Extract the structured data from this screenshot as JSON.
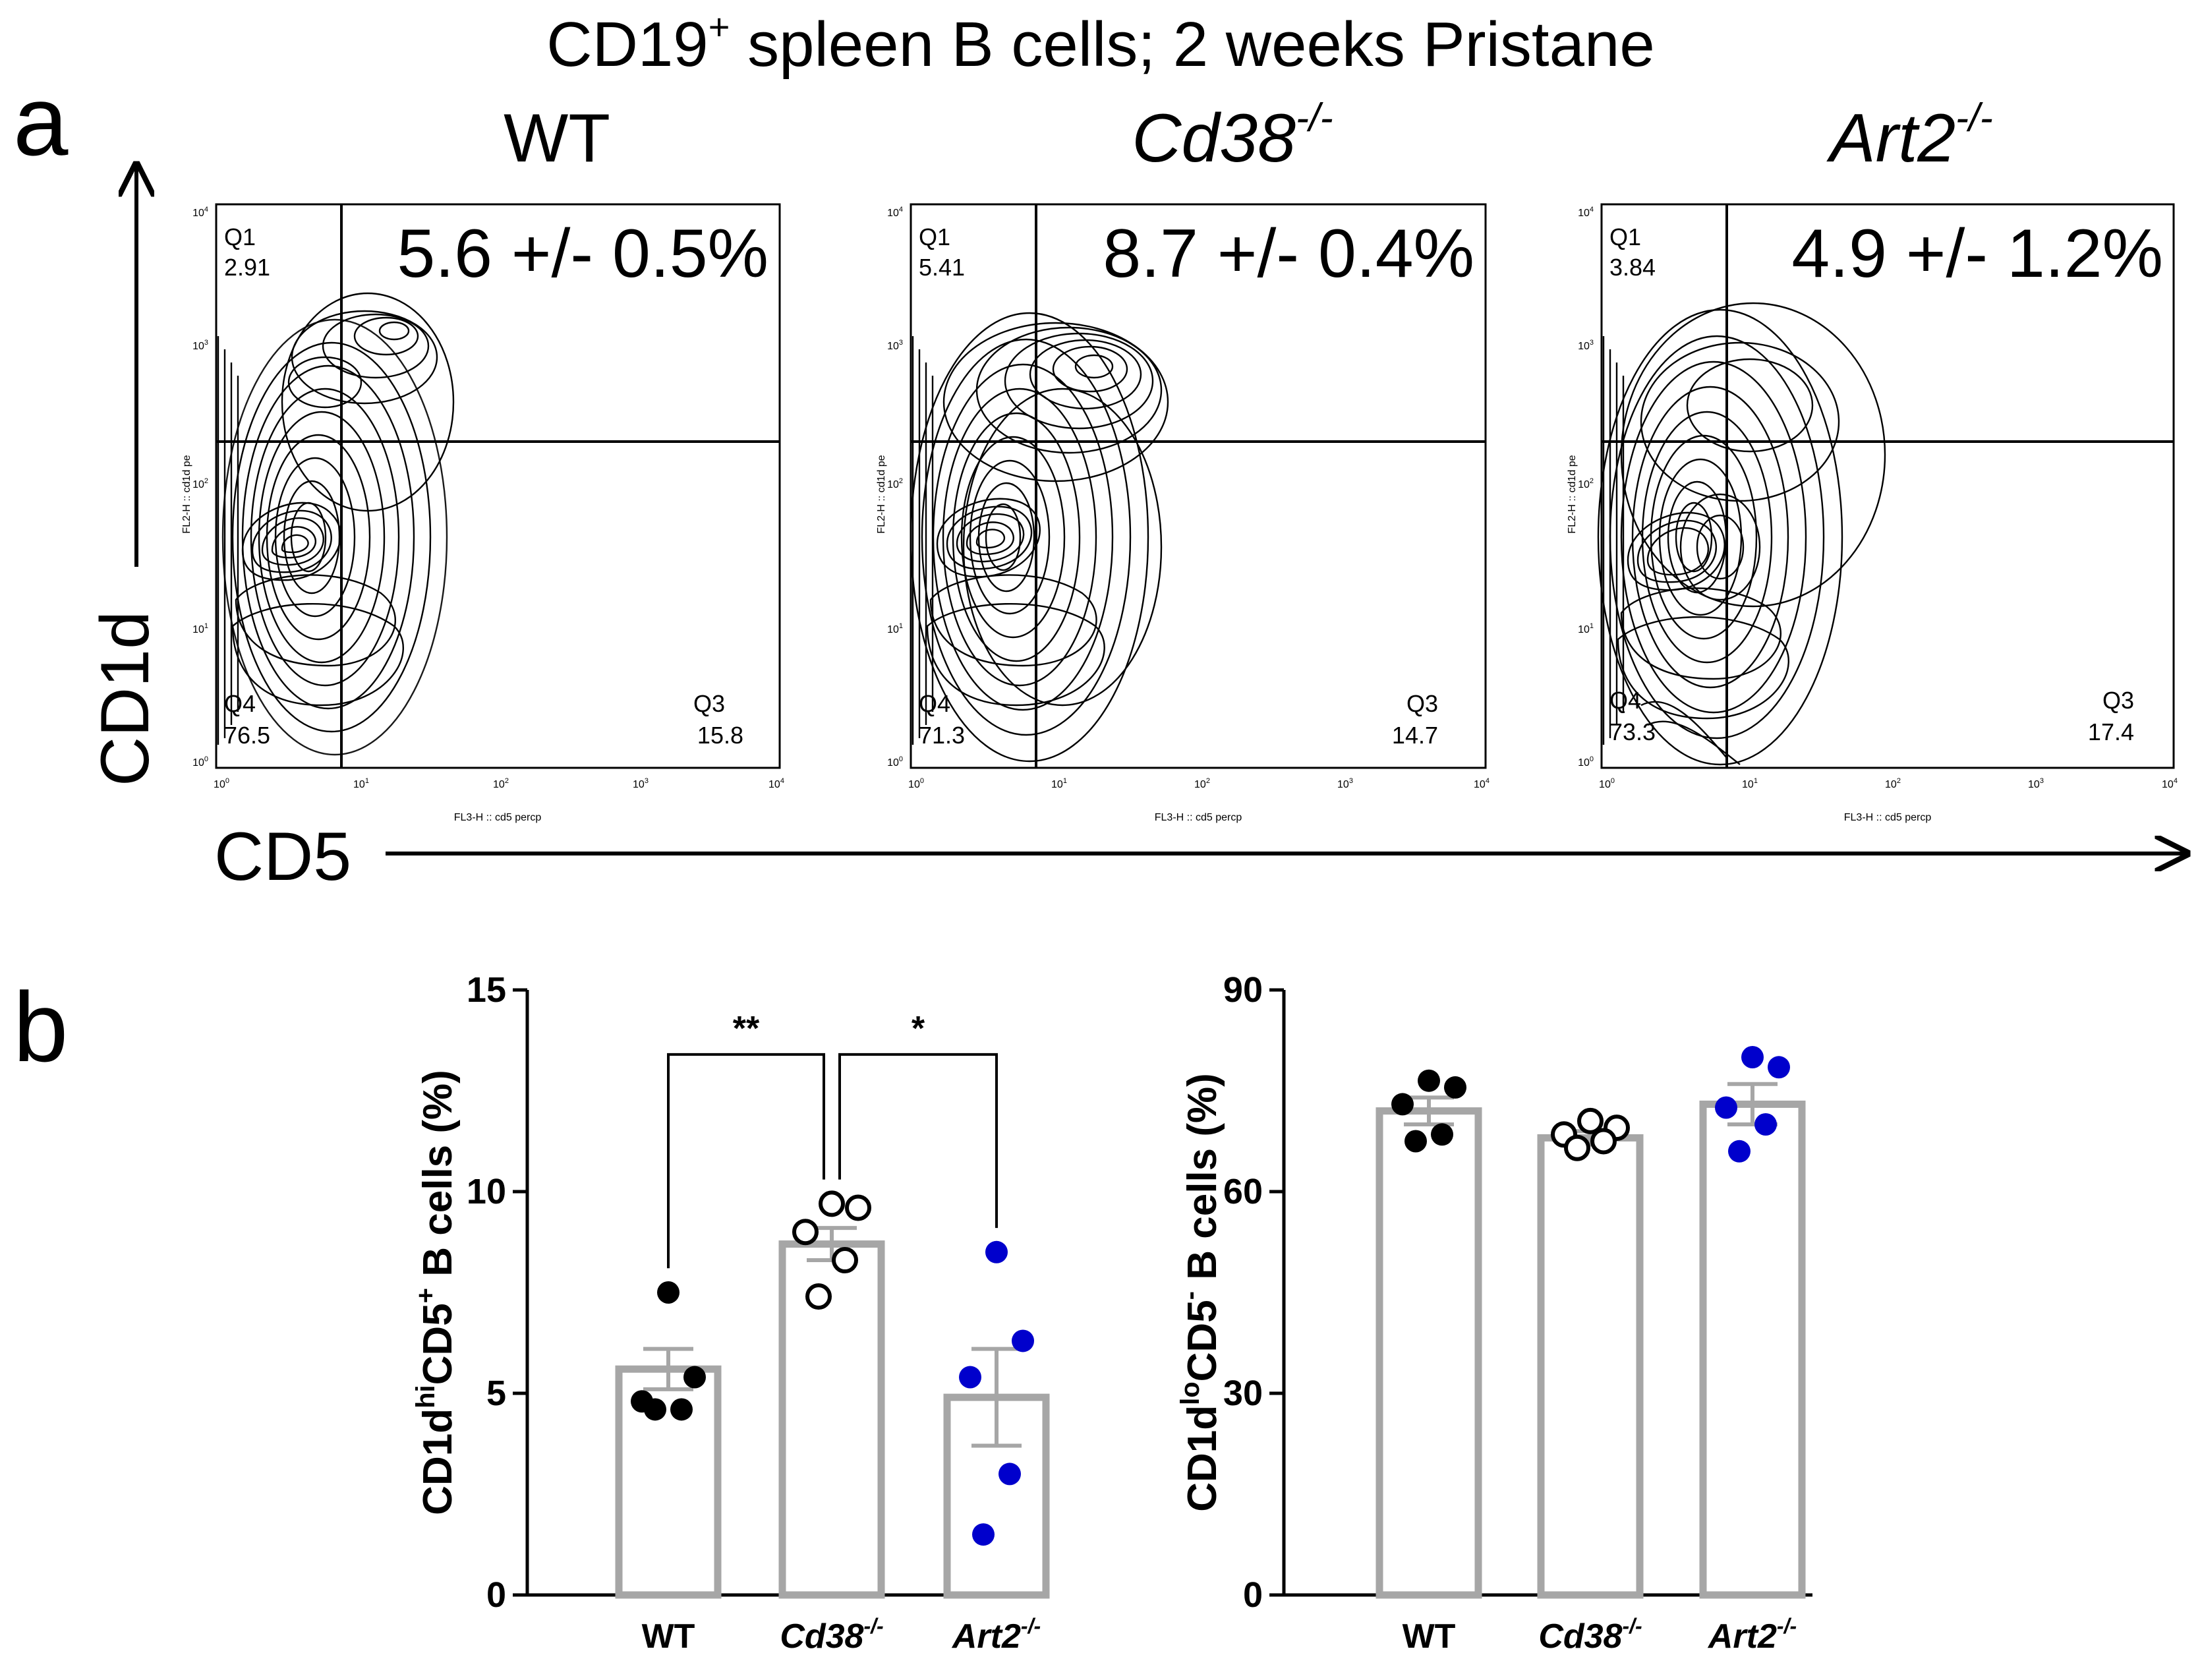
{
  "title": {
    "pre": "CD19",
    "sup": "+",
    "post": " spleen B cells; 2 weeks Pristane"
  },
  "panel_a": {
    "label": "a",
    "y_axis_label": "CD1d",
    "x_axis_label": "CD5",
    "plots": [
      {
        "genotype": "WT",
        "genotype_sup": "",
        "headline": "5.6 +/- 0.5%",
        "q1_name": "Q1",
        "q1": "2.91",
        "q3_name": "Q3",
        "q3": "15.8",
        "q4_name": "Q4",
        "q4": "76.5",
        "y_channel": "FL2-H :: cd1d pe",
        "x_channel": "FL3-H :: cd5 percp"
      },
      {
        "genotype": "Cd38",
        "genotype_sup": "-/-",
        "headline": "8.7 +/- 0.4%",
        "q1_name": "Q1",
        "q1": "5.41",
        "q3_name": "Q3",
        "q3": "14.7",
        "q4_name": "Q4",
        "q4": "71.3",
        "y_channel": "FL2-H :: cd1d pe",
        "x_channel": "FL3-H :: cd5 percp"
      },
      {
        "genotype": "Art2",
        "genotype_sup": "-/-",
        "headline": "4.9 +/- 1.2%",
        "q1_name": "Q1",
        "q1": "3.84",
        "q3_name": "Q3",
        "q3": "17.4",
        "q4_name": "Q4",
        "q4": "73.3",
        "y_channel": "FL2-H :: cd1d pe",
        "x_channel": "FL3-H :: cd5 percp"
      }
    ],
    "tick_base": "10",
    "tick_exponents": [
      "0",
      "1",
      "2",
      "3",
      "4"
    ]
  },
  "panel_b": {
    "label": "b"
  },
  "chart_data": [
    {
      "type": "bar",
      "ylabel_parts": [
        "CD1d",
        "hi",
        "CD5",
        "+",
        " B cells (%)"
      ],
      "categories": [
        {
          "name": "WT",
          "sup": ""
        },
        {
          "name": "Cd38",
          "sup": "-/-"
        },
        {
          "name": "Art2",
          "sup": "-/-"
        }
      ],
      "means": [
        5.6,
        8.7,
        4.9
      ],
      "sem": [
        0.5,
        0.4,
        1.2
      ],
      "points": [
        [
          7.5,
          5.4,
          4.8,
          4.6,
          4.6
        ],
        [
          9.7,
          9.6,
          9.0,
          8.3,
          7.4
        ],
        [
          8.5,
          6.3,
          5.4,
          3.0,
          1.5
        ]
      ],
      "point_styles": [
        "filled-black",
        "open-black",
        "filled-blue"
      ],
      "ylim": [
        0,
        15
      ],
      "yticks": [
        "0",
        "5",
        "10",
        "15"
      ],
      "significance": [
        {
          "from": 0,
          "to": 1,
          "label": "**"
        },
        {
          "from": 1,
          "to": 2,
          "label": "*"
        }
      ]
    },
    {
      "type": "bar",
      "ylabel_parts": [
        "CD1d",
        "lo",
        "CD5",
        "-",
        " B cells (%)"
      ],
      "categories": [
        {
          "name": "WT",
          "sup": ""
        },
        {
          "name": "Cd38",
          "sup": "-/-"
        },
        {
          "name": "Art2",
          "sup": "-/-"
        }
      ],
      "means": [
        72,
        68,
        73
      ],
      "sem": [
        2,
        1,
        3
      ],
      "points": [
        [
          76.5,
          75.5,
          73,
          68.5,
          67.5
        ],
        [
          70.5,
          69.5,
          68.5,
          67.5,
          66.5
        ],
        [
          80,
          78.5,
          72.5,
          70,
          66
        ]
      ],
      "point_styles": [
        "filled-black",
        "open-black",
        "filled-blue"
      ],
      "ylim": [
        0,
        90
      ],
      "yticks": [
        "0",
        "30",
        "60",
        "90"
      ],
      "significance": []
    }
  ],
  "colors": {
    "ink": "#000000",
    "bar_outline": "#a6a6a6",
    "blue_points": "#0000cc"
  }
}
